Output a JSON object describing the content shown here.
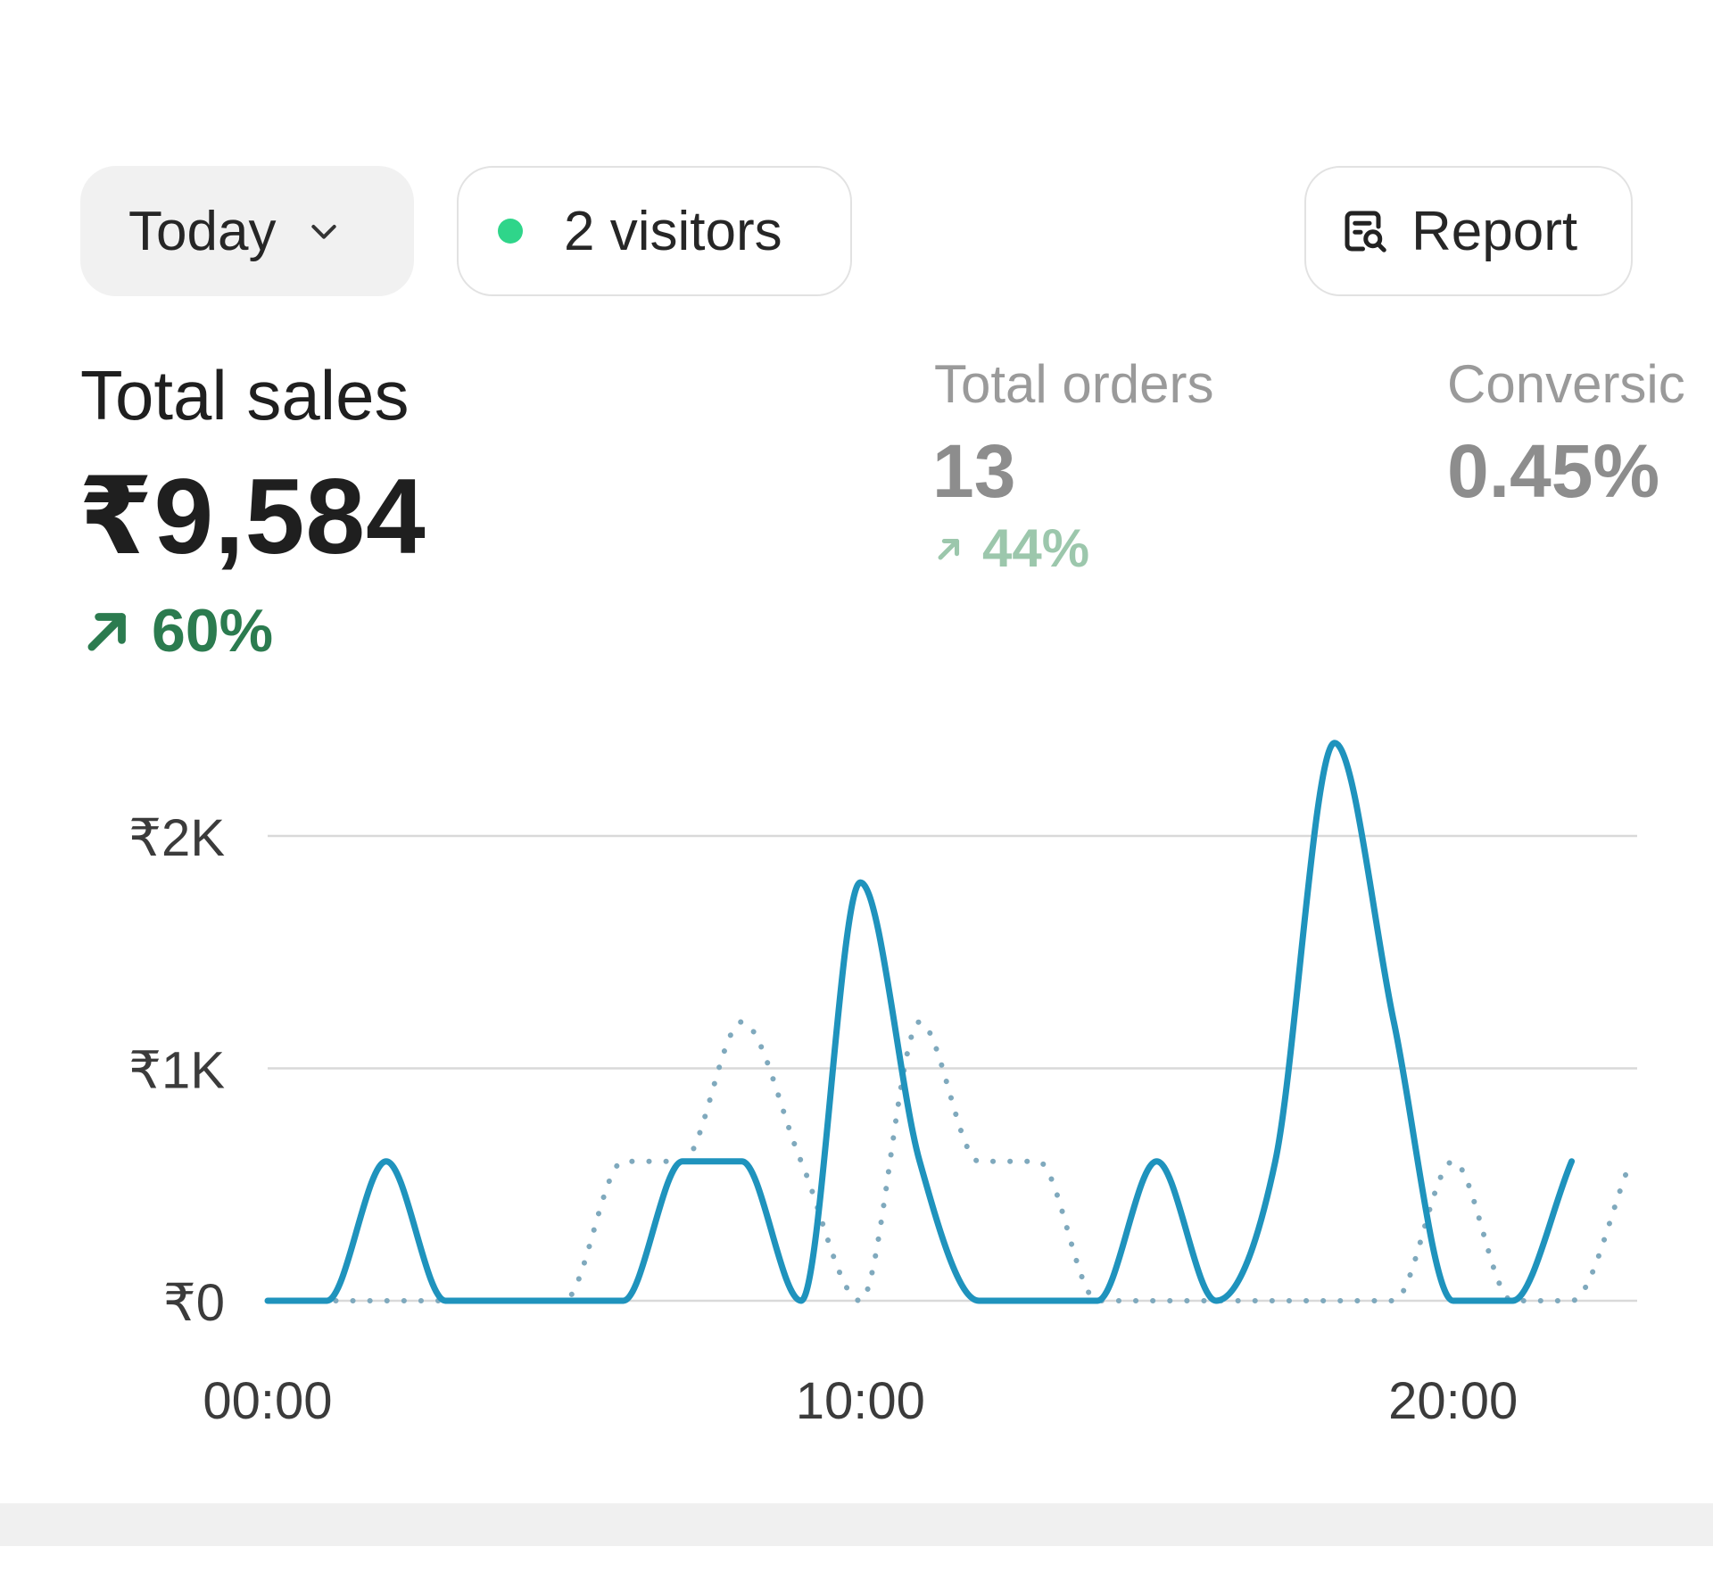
{
  "filters": {
    "period_label": "Today",
    "visitors_label": "2 visitors",
    "report_label": "Report"
  },
  "colors": {
    "accent_line": "#1f93bd",
    "positive": "#2b7b4f",
    "live_dot": "#2fd58a"
  },
  "icons": {
    "period_dropdown": "chevron-down-icon",
    "visitors_status": "live-dot-icon",
    "report": "report-search-icon",
    "delta": "arrow-up-right-icon"
  },
  "metrics": {
    "total_sales": {
      "label": "Total sales",
      "value": "₹9,584",
      "delta": "60%"
    },
    "total_orders": {
      "label": "Total orders",
      "value": "13",
      "delta": "44%"
    },
    "conversion": {
      "label": "Conversic",
      "value": "0.45%"
    }
  },
  "chart_data": {
    "type": "line",
    "x_tick_labels": [
      "00:00",
      "10:00",
      "20:00"
    ],
    "y_tick_labels": [
      "₹0",
      "₹1K",
      "₹2K"
    ],
    "ylim": [
      0,
      2000
    ],
    "xlim": [
      0,
      23
    ],
    "grid": true,
    "series": [
      {
        "style": "solid",
        "x": [
          0,
          1,
          2,
          3,
          4,
          5,
          6,
          7,
          8,
          9,
          10,
          11,
          12,
          13,
          14,
          15,
          16,
          17,
          18,
          19,
          20,
          21,
          22
        ],
        "values": [
          0,
          0,
          600,
          0,
          0,
          0,
          0,
          600,
          600,
          0,
          1800,
          600,
          0,
          0,
          0,
          600,
          0,
          600,
          2400,
          1200,
          0,
          0,
          600
        ]
      },
      {
        "style": "dotted",
        "x": [
          0,
          1,
          2,
          3,
          4,
          5,
          6,
          7,
          8,
          9,
          10,
          11,
          12,
          13,
          14,
          15,
          16,
          17,
          18,
          19,
          20,
          21,
          22,
          23
        ],
        "values": [
          0,
          0,
          0,
          0,
          0,
          0,
          600,
          600,
          1200,
          600,
          0,
          1200,
          600,
          600,
          0,
          0,
          0,
          0,
          0,
          0,
          600,
          0,
          0,
          600
        ]
      }
    ]
  }
}
